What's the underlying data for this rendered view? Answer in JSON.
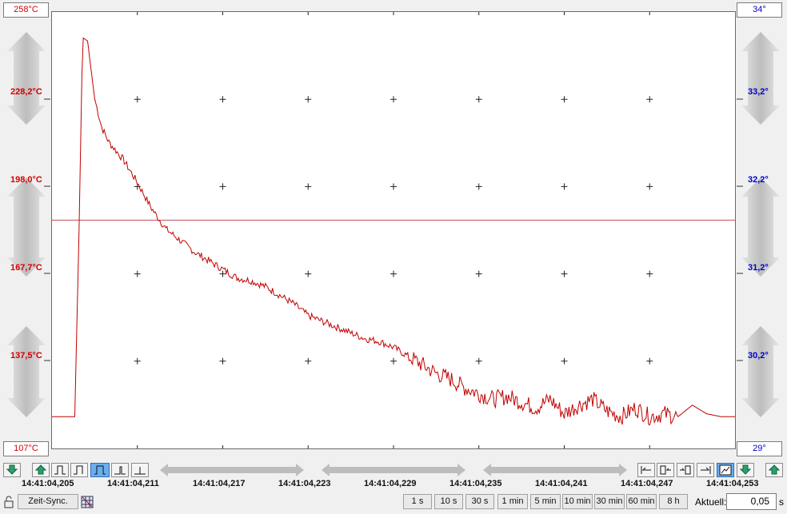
{
  "left_axis": {
    "max": "258°C",
    "min": "107°C",
    "ticks": [
      "228,2°C",
      "198,0°C",
      "167,7°C",
      "137,5°C"
    ],
    "color": "#d40000"
  },
  "right_axis": {
    "max": "34°",
    "min": "29°",
    "ticks": [
      "33,2°",
      "32,2°",
      "31,2°",
      "30,2°"
    ],
    "color": "#0000cc"
  },
  "time_axis": {
    "labels": [
      "14:41:04,205",
      "14:41:04,211",
      "14:41:04,217",
      "14:41:04,223",
      "14:41:04,229",
      "14:41:04,235",
      "14:41:04,241",
      "14:41:04,247",
      "14:41:04,253"
    ]
  },
  "toolbar": {
    "zeit_sync_label": "Zeit-Sync.",
    "ranges": [
      "1 s",
      "10 s",
      "30 s",
      "1 min",
      "5 min",
      "10 min",
      "30 min",
      "60 min",
      "8 h"
    ],
    "aktuell_label": "Aktuell:",
    "aktuell_value": "0,05",
    "unit": "s"
  },
  "icons": {
    "scroll_down": "arrow-down-icon",
    "scroll_up": "arrow-up-icon",
    "trigger_rising": "rising-edge-icon",
    "trigger_falling": "falling-edge-icon",
    "trigger_pulse": "pulse-icon",
    "trigger_low": "low-pulse-icon",
    "trigger_base": "baseline-icon",
    "lock": "lock-icon",
    "grid": "grid-icon"
  },
  "chart_data": {
    "type": "line",
    "series": [
      {
        "x": [
          0,
          1.6,
          1.9,
          2.1,
          2.2,
          2.5,
          3.0,
          3.5,
          4.0,
          5.0,
          6.0,
          7.0,
          8.0,
          9.0,
          10.0,
          11.0,
          12.0,
          13.0,
          14.0,
          15.0,
          16.0,
          17.0,
          18.0,
          19.0,
          20.0,
          21.0,
          22.0,
          23.0,
          24.0,
          25.0,
          26.0,
          27.0,
          28.0,
          29.0,
          30.0,
          31.0,
          32.0,
          33.0,
          34.0,
          35.0,
          36.0,
          37.0,
          38.0,
          39.0,
          40.0,
          41.0,
          42.0,
          43.0,
          44.0,
          45.0,
          46.0,
          47.0,
          48.0
        ],
        "values": [
          118,
          118,
          182,
          236,
          249,
          248,
          228,
          218,
          213,
          207,
          199,
          190,
          183,
          179,
          175,
          172,
          169,
          166,
          165,
          163,
          160,
          157,
          153,
          151,
          149,
          147,
          145,
          144,
          142,
          139,
          136,
          133,
          131,
          128,
          126,
          124,
          125,
          123,
          121,
          124,
          119,
          122,
          124,
          120,
          118,
          121,
          118,
          119,
          118,
          122,
          119,
          118,
          118
        ]
      }
    ],
    "xlim": [
      0,
      48
    ],
    "ylim": [
      107,
      258
    ],
    "reference_line": 186,
    "grid": true
  }
}
